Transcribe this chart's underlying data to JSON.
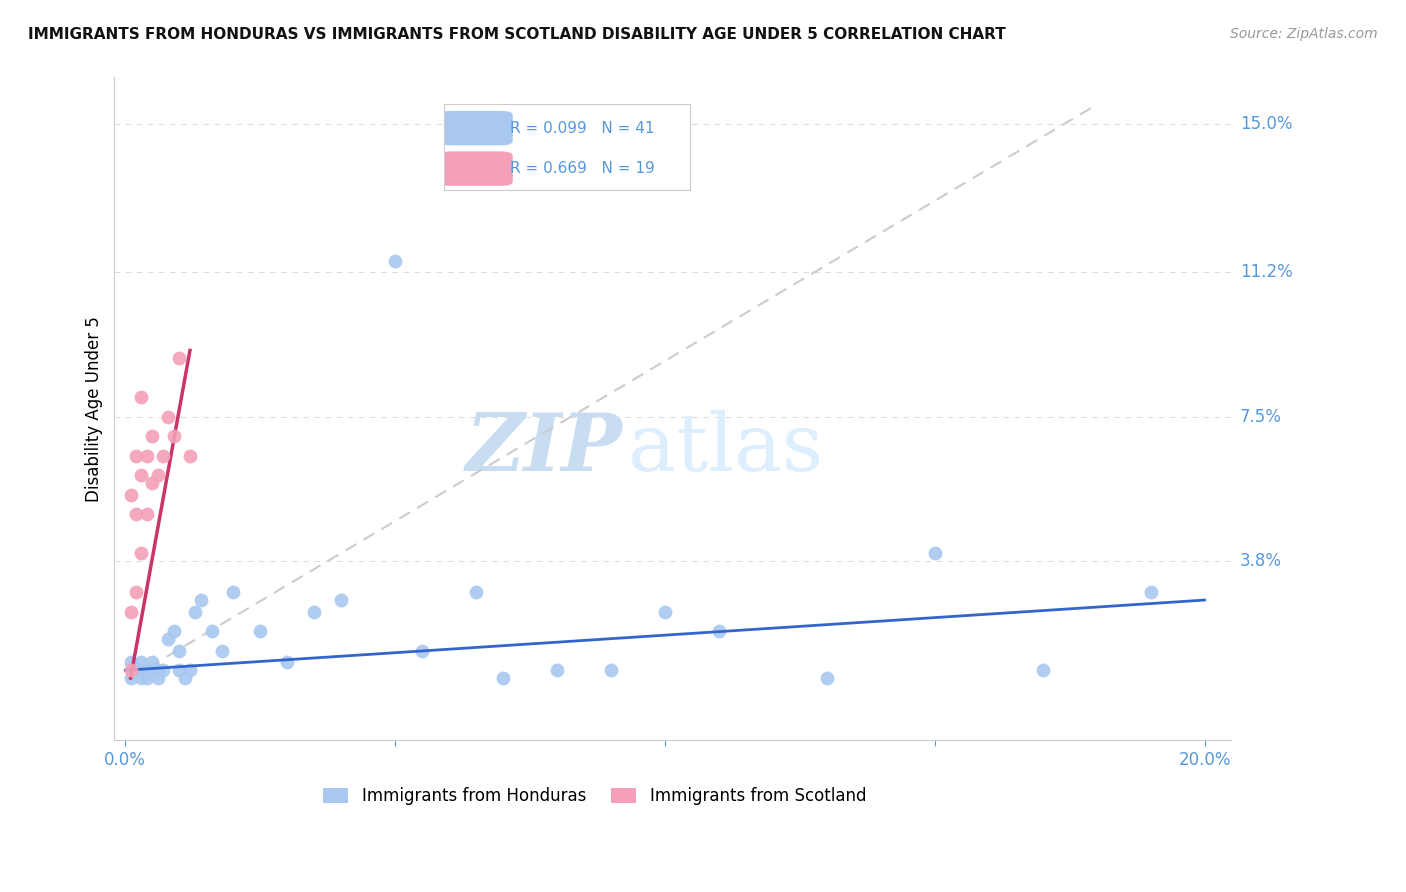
{
  "title": "IMMIGRANTS FROM HONDURAS VS IMMIGRANTS FROM SCOTLAND DISABILITY AGE UNDER 5 CORRELATION CHART",
  "source": "Source: ZipAtlas.com",
  "ylabel": "Disability Age Under 5",
  "ytick_labels": [
    "15.0%",
    "11.2%",
    "7.5%",
    "3.8%"
  ],
  "ytick_values": [
    0.15,
    0.112,
    0.075,
    0.038
  ],
  "xlim": [
    -0.002,
    0.205
  ],
  "ylim": [
    -0.008,
    0.162
  ],
  "legend1_R": "R = 0.099",
  "legend1_N": "N = 41",
  "legend2_R": "R = 0.669",
  "legend2_N": "N = 19",
  "color_honduras": "#a8c8f0",
  "color_scotland": "#f4a0b8",
  "color_line_honduras": "#3366cc",
  "color_line_scotland": "#cc3366",
  "color_dashed": "#cccccc",
  "color_axis_text": "#5599dd",
  "color_grid": "#dddddd",
  "background_color": "#ffffff",
  "watermark_zip": "ZIP",
  "watermark_atlas": "atlas",
  "honduras_x": [
    0.001,
    0.001,
    0.002,
    0.002,
    0.003,
    0.003,
    0.003,
    0.004,
    0.004,
    0.005,
    0.005,
    0.006,
    0.006,
    0.007,
    0.008,
    0.009,
    0.01,
    0.01,
    0.011,
    0.012,
    0.013,
    0.014,
    0.016,
    0.018,
    0.02,
    0.025,
    0.03,
    0.035,
    0.04,
    0.05,
    0.055,
    0.065,
    0.07,
    0.08,
    0.09,
    0.1,
    0.11,
    0.13,
    0.15,
    0.17,
    0.19
  ],
  "honduras_y": [
    0.008,
    0.012,
    0.01,
    0.01,
    0.01,
    0.008,
    0.012,
    0.01,
    0.008,
    0.01,
    0.012,
    0.01,
    0.008,
    0.01,
    0.018,
    0.02,
    0.01,
    0.015,
    0.008,
    0.01,
    0.025,
    0.028,
    0.02,
    0.015,
    0.03,
    0.02,
    0.012,
    0.025,
    0.028,
    0.115,
    0.015,
    0.03,
    0.008,
    0.01,
    0.01,
    0.025,
    0.02,
    0.008,
    0.04,
    0.01,
    0.03
  ],
  "scotland_x": [
    0.001,
    0.001,
    0.001,
    0.002,
    0.002,
    0.002,
    0.003,
    0.003,
    0.003,
    0.004,
    0.004,
    0.005,
    0.005,
    0.006,
    0.007,
    0.008,
    0.009,
    0.01,
    0.012
  ],
  "scotland_y": [
    0.01,
    0.025,
    0.055,
    0.03,
    0.05,
    0.065,
    0.04,
    0.06,
    0.08,
    0.05,
    0.065,
    0.058,
    0.07,
    0.06,
    0.065,
    0.075,
    0.07,
    0.09,
    0.065
  ],
  "honduras_trendline_x": [
    0.0,
    0.2
  ],
  "honduras_trendline_y": [
    0.01,
    0.028
  ],
  "scotland_trendline_x": [
    0.001,
    0.012
  ],
  "scotland_trendline_y": [
    0.008,
    0.092
  ],
  "dashed_trendline_x": [
    0.001,
    0.18
  ],
  "dashed_trendline_y": [
    0.008,
    0.155
  ]
}
